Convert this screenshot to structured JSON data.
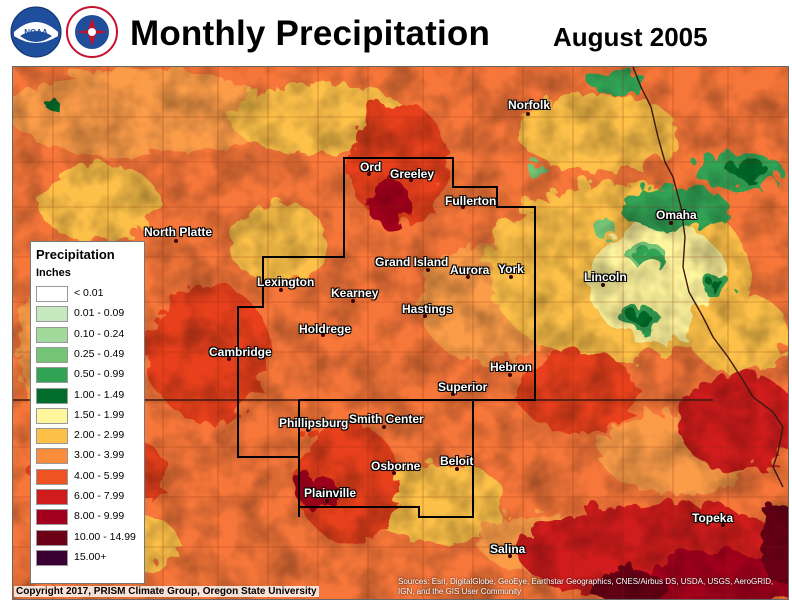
{
  "header": {
    "title": "Monthly Precipitation",
    "date": "August 2005",
    "noaa_logo_text": "NOAA",
    "nws_logo_text": "NATIONAL WEATHER SERVICE"
  },
  "legend": {
    "title": "Precipitation",
    "units": "Inches",
    "classes": [
      {
        "label": "< 0.01",
        "color": "#ffffff"
      },
      {
        "label": "0.01 - 0.09",
        "color": "#c7e9c0"
      },
      {
        "label": "0.10 - 0.24",
        "color": "#a1d99b"
      },
      {
        "label": "0.25 - 0.49",
        "color": "#74c476"
      },
      {
        "label": "0.50 - 0.99",
        "color": "#31a354"
      },
      {
        "label": "1.00 - 1.49",
        "color": "#006d2c"
      },
      {
        "label": "1.50 - 1.99",
        "color": "#fff59d"
      },
      {
        "label": "2.00 - 2.99",
        "color": "#fdc14a"
      },
      {
        "label": "3.00 - 3.99",
        "color": "#fb8c3c"
      },
      {
        "label": "4.00 - 5.99",
        "color": "#f05323"
      },
      {
        "label": "6.00 - 7.99",
        "color": "#d01c1c"
      },
      {
        "label": "8.00 - 9.99",
        "color": "#a3001f"
      },
      {
        "label": "10.00 - 14.99",
        "color": "#6b0017"
      },
      {
        "label": "15.00+",
        "color": "#3b0033"
      }
    ]
  },
  "cities": [
    {
      "name": "Norfolk"
    },
    {
      "name": "Ord"
    },
    {
      "name": "Greeley"
    },
    {
      "name": "Fullerton"
    },
    {
      "name": "Omaha"
    },
    {
      "name": "North Platte"
    },
    {
      "name": "Grand Island"
    },
    {
      "name": "Aurora"
    },
    {
      "name": "York"
    },
    {
      "name": "Lincoln"
    },
    {
      "name": "Lexington"
    },
    {
      "name": "Kearney"
    },
    {
      "name": "Hastings"
    },
    {
      "name": "Holdrege"
    },
    {
      "name": "Cambridge"
    },
    {
      "name": "Hebron"
    },
    {
      "name": "Superior"
    },
    {
      "name": "Phillipsburg"
    },
    {
      "name": "Smith Center"
    },
    {
      "name": "Beloit"
    },
    {
      "name": "Osborne"
    },
    {
      "name": "Plainville"
    },
    {
      "name": "Topeka"
    },
    {
      "name": "Salina"
    }
  ],
  "footer": {
    "copyright": "Copyright 2017, PRISM Climate Group, Oregon State University",
    "credits": "Sources: Esri, DigitalGlobe, GeoEye, Earthstar Geographics, CNES/Airbus DS, USDA, USGS, AeroGRID, IGN, and the GIS User Community"
  }
}
